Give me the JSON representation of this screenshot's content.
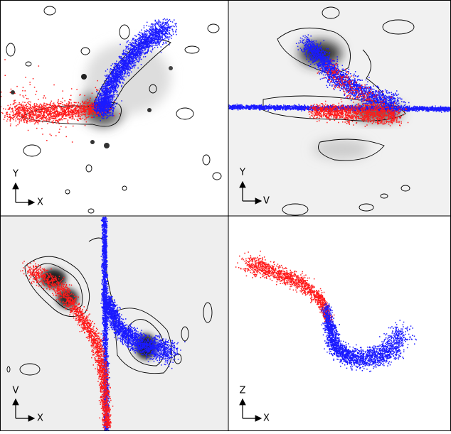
{
  "panels": [
    {
      "vertical_axis": "Y",
      "horizontal_axis": "X"
    },
    {
      "vertical_axis": "Y",
      "horizontal_axis": "V"
    },
    {
      "vertical_axis": "V",
      "horizontal_axis": "X"
    },
    {
      "vertical_axis": "Z",
      "horizontal_axis": "X"
    }
  ]
}
